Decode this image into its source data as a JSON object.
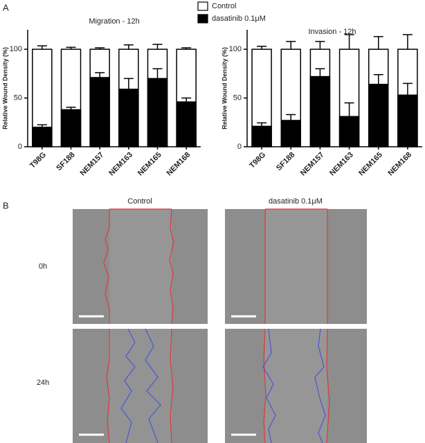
{
  "panel_labels": [
    "A",
    "B"
  ],
  "chart_data": [
    {
      "type": "bar",
      "title": "Migration - 12h",
      "ylabel": "Relative Wound Density (%)",
      "categories": [
        "T98G",
        "SF188",
        "NEM157",
        "NEM163",
        "NEM165",
        "NEM168"
      ],
      "series": [
        {
          "name": "Control",
          "color": "#ffffff",
          "values": [
            100,
            100,
            100,
            100,
            100,
            100
          ],
          "errors": [
            3.5,
            2,
            1.5,
            4.5,
            5,
            1.5
          ]
        },
        {
          "name": "dasatinib 0.1μM",
          "color": "#000000",
          "values": [
            20,
            38,
            71,
            59,
            70,
            46
          ],
          "errors": [
            2.5,
            2.5,
            5,
            11,
            10,
            4
          ]
        }
      ],
      "ylim": [
        0,
        120
      ],
      "yticks": [
        0,
        50,
        100
      ]
    },
    {
      "type": "bar",
      "title": "Invasion - 12h",
      "ylabel": "Relative Wound Density (%)",
      "categories": [
        "T98G",
        "SF188",
        "NEM157",
        "NEM163",
        "NEM165",
        "NEM168"
      ],
      "series": [
        {
          "name": "Control",
          "color": "#ffffff",
          "values": [
            100,
            100,
            100,
            100,
            100,
            100
          ],
          "errors": [
            3,
            8,
            8,
            15,
            13,
            15
          ]
        },
        {
          "name": "dasatinib 0.1μM",
          "color": "#000000",
          "values": [
            21,
            27,
            72,
            31,
            64,
            53
          ],
          "errors": [
            3.5,
            6,
            8,
            14,
            10,
            12
          ]
        }
      ],
      "ylim": [
        0,
        120
      ],
      "yticks": [
        0,
        50,
        100
      ]
    }
  ],
  "image_panel": {
    "columns": [
      "Control",
      "dasatinib 0.1μM"
    ],
    "rows": [
      "0h",
      "24h"
    ]
  }
}
